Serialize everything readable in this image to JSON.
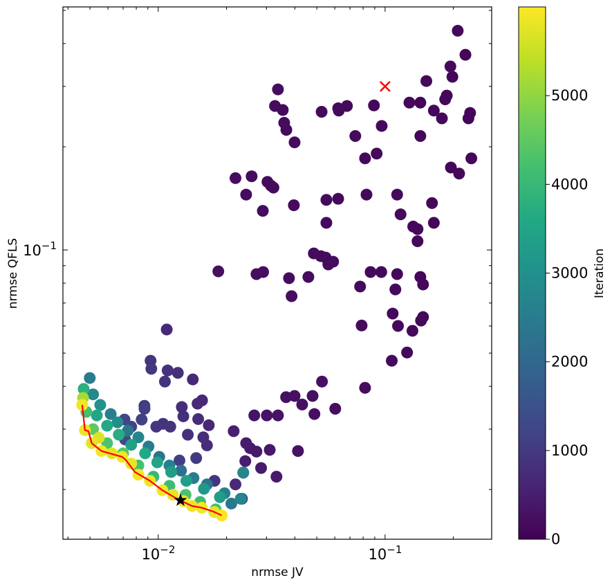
{
  "chart_data": {
    "type": "scatter",
    "xlabel": "nrmse JV",
    "ylabel": "nrmse QFLS",
    "xscale": "log",
    "yscale": "log",
    "xlim": [
      0.0038,
      0.295
    ],
    "ylim": [
      0.01432,
      0.5117
    ],
    "x_tick_labels": [
      {
        "value": 0.01,
        "base": "10",
        "exp": "−2"
      },
      {
        "value": 0.1,
        "base": "10",
        "exp": "−1"
      }
    ],
    "y_tick_labels": [
      {
        "value": 0.1,
        "base": "10",
        "exp": "−1"
      }
    ],
    "grid": false,
    "colorbar": {
      "label": "Iteration",
      "range": [
        0,
        6000
      ],
      "ticks": [
        0,
        1000,
        2000,
        3000,
        4000,
        5000
      ],
      "tick_labels": [
        "0",
        "1000",
        "2000",
        "3000",
        "4000",
        "5000"
      ],
      "colormap": [
        "#440154",
        "#482475",
        "#414487",
        "#355f8d",
        "#2a788e",
        "#21918c",
        "#22a884",
        "#44bf70",
        "#7ad151",
        "#bddf26",
        "#fde725"
      ]
    },
    "points_format": [
      "nrmse_jv",
      "nrmse_qfls",
      "iteration"
    ],
    "points": [
      [
        0.209,
        0.436,
        120
      ],
      [
        0.226,
        0.371,
        90
      ],
      [
        0.194,
        0.343,
        150
      ],
      [
        0.198,
        0.32,
        110
      ],
      [
        0.152,
        0.311,
        130
      ],
      [
        0.0337,
        0.294,
        200
      ],
      [
        0.0327,
        0.263,
        180
      ],
      [
        0.0354,
        0.256,
        160
      ],
      [
        0.0525,
        0.253,
        140
      ],
      [
        0.0621,
        0.259,
        120
      ],
      [
        0.0625,
        0.255,
        150
      ],
      [
        0.0679,
        0.263,
        130
      ],
      [
        0.0893,
        0.264,
        100
      ],
      [
        0.128,
        0.269,
        120
      ],
      [
        0.143,
        0.269,
        90
      ],
      [
        0.164,
        0.255,
        110
      ],
      [
        0.187,
        0.282,
        100
      ],
      [
        0.184,
        0.275,
        130
      ],
      [
        0.178,
        0.242,
        120
      ],
      [
        0.237,
        0.251,
        80
      ],
      [
        0.233,
        0.242,
        100
      ],
      [
        0.0359,
        0.235,
        170
      ],
      [
        0.0367,
        0.224,
        160
      ],
      [
        0.0966,
        0.23,
        140
      ],
      [
        0.143,
        0.215,
        110
      ],
      [
        0.0739,
        0.215,
        150
      ],
      [
        0.0399,
        0.206,
        190
      ],
      [
        0.0918,
        0.191,
        130
      ],
      [
        0.0816,
        0.185,
        140
      ],
      [
        0.195,
        0.174,
        90
      ],
      [
        0.24,
        0.185,
        100
      ],
      [
        0.212,
        0.167,
        110
      ],
      [
        0.0219,
        0.162,
        210
      ],
      [
        0.0258,
        0.164,
        200
      ],
      [
        0.0303,
        0.158,
        180
      ],
      [
        0.0314,
        0.154,
        170
      ],
      [
        0.0322,
        0.152,
        190
      ],
      [
        0.0244,
        0.145,
        200
      ],
      [
        0.113,
        0.145,
        120
      ],
      [
        0.0828,
        0.145,
        130
      ],
      [
        0.0551,
        0.14,
        150
      ],
      [
        0.0621,
        0.141,
        140
      ],
      [
        0.0396,
        0.135,
        170
      ],
      [
        0.0289,
        0.13,
        190
      ],
      [
        0.161,
        0.137,
        110
      ],
      [
        0.117,
        0.127,
        120
      ],
      [
        0.164,
        0.12,
        100
      ],
      [
        0.0551,
        0.12,
        160
      ],
      [
        0.133,
        0.117,
        110
      ],
      [
        0.139,
        0.115,
        130
      ],
      [
        0.139,
        0.106,
        120
      ],
      [
        0.0184,
        0.0866,
        260
      ],
      [
        0.0485,
        0.0977,
        180
      ],
      [
        0.0521,
        0.0959,
        170
      ],
      [
        0.0547,
        0.095,
        160
      ],
      [
        0.059,
        0.0924,
        170
      ],
      [
        0.0562,
        0.0907,
        150
      ],
      [
        0.0271,
        0.085,
        220
      ],
      [
        0.029,
        0.0862,
        210
      ],
      [
        0.0377,
        0.0827,
        190
      ],
      [
        0.0459,
        0.0834,
        180
      ],
      [
        0.0863,
        0.0862,
        140
      ],
      [
        0.0962,
        0.0862,
        130
      ],
      [
        0.113,
        0.085,
        120
      ],
      [
        0.143,
        0.0834,
        110
      ],
      [
        0.147,
        0.0793,
        120
      ],
      [
        0.0776,
        0.0782,
        150
      ],
      [
        0.111,
        0.0767,
        130
      ],
      [
        0.0387,
        0.0733,
        200
      ],
      [
        0.108,
        0.0652,
        140
      ],
      [
        0.147,
        0.0637,
        130
      ],
      [
        0.144,
        0.0622,
        120
      ],
      [
        0.114,
        0.06,
        140
      ],
      [
        0.0788,
        0.0602,
        150
      ],
      [
        0.132,
        0.0581,
        130
      ],
      [
        0.0109,
        0.0586,
        700
      ],
      [
        0.107,
        0.0475,
        150
      ],
      [
        0.125,
        0.0502,
        140
      ],
      [
        0.0527,
        0.0413,
        250
      ],
      [
        0.0816,
        0.0396,
        200
      ],
      [
        0.0399,
        0.0375,
        260
      ],
      [
        0.0366,
        0.0372,
        280
      ],
      [
        0.0431,
        0.0354,
        250
      ],
      [
        0.0479,
        0.0375,
        240
      ],
      [
        0.0603,
        0.0344,
        220
      ],
      [
        0.0488,
        0.0332,
        250
      ],
      [
        0.0337,
        0.0329,
        300
      ],
      [
        0.0301,
        0.0329,
        310
      ],
      [
        0.0265,
        0.0329,
        330
      ],
      [
        0.0413,
        0.0259,
        290
      ],
      [
        0.00925,
        0.0475,
        900
      ],
      [
        0.011,
        0.0445,
        850
      ],
      [
        0.0122,
        0.0438,
        800
      ],
      [
        0.00932,
        0.045,
        950
      ],
      [
        0.0107,
        0.0413,
        880
      ],
      [
        0.0142,
        0.0419,
        700
      ],
      [
        0.0156,
        0.0364,
        650
      ],
      [
        0.0149,
        0.0356,
        700
      ],
      [
        0.0127,
        0.0348,
        780
      ],
      [
        0.00869,
        0.0351,
        1000
      ],
      [
        0.0105,
        0.0311,
        900
      ],
      [
        0.0098,
        0.0305,
        950
      ],
      [
        0.0113,
        0.0305,
        880
      ],
      [
        0.0129,
        0.0327,
        820
      ],
      [
        0.015,
        0.0321,
        760
      ],
      [
        0.0167,
        0.0308,
        700
      ],
      [
        0.0135,
        0.0289,
        850
      ],
      [
        0.0158,
        0.0284,
        780
      ],
      [
        0.0164,
        0.0269,
        760
      ],
      [
        0.0215,
        0.0296,
        500
      ],
      [
        0.0244,
        0.0273,
        450
      ],
      [
        0.0254,
        0.0264,
        430
      ],
      [
        0.0271,
        0.0258,
        420
      ],
      [
        0.031,
        0.0261,
        400
      ],
      [
        0.0284,
        0.0231,
        440
      ],
      [
        0.0332,
        0.0218,
        420
      ],
      [
        0.0242,
        0.0242,
        480
      ],
      [
        0.0237,
        0.0224,
        500
      ],
      [
        0.0177,
        0.0212,
        900
      ],
      [
        0.0219,
        0.0207,
        700
      ],
      [
        0.0147,
        0.0247,
        1000
      ],
      [
        0.0124,
        0.0243,
        1100
      ],
      [
        0.0076,
        0.0305,
        1200
      ],
      [
        0.0071,
        0.032,
        1250
      ],
      [
        0.0087,
        0.0344,
        1100
      ],
      [
        0.00845,
        0.032,
        1150
      ],
      [
        0.00714,
        0.028,
        1300
      ],
      [
        0.0234,
        0.0188,
        1400
      ],
      [
        0.0237,
        0.0224,
        2700
      ],
      [
        0.00499,
        0.0423,
        2500
      ],
      [
        0.00469,
        0.0393,
        3800
      ],
      [
        0.00466,
        0.037,
        5200
      ],
      [
        0.00516,
        0.0379,
        2800
      ],
      [
        0.00555,
        0.0353,
        3000
      ],
      [
        0.00617,
        0.0332,
        2600
      ],
      [
        0.00661,
        0.0314,
        2900
      ],
      [
        0.00734,
        0.0297,
        2400
      ],
      [
        0.00817,
        0.0284,
        2700
      ],
      [
        0.00906,
        0.0267,
        2500
      ],
      [
        0.0101,
        0.0249,
        2300
      ],
      [
        0.0112,
        0.0235,
        2600
      ],
      [
        0.0126,
        0.0227,
        2200
      ],
      [
        0.0143,
        0.0216,
        2500
      ],
      [
        0.0164,
        0.0207,
        2300
      ],
      [
        0.0196,
        0.0195,
        2600
      ],
      [
        0.0231,
        0.0188,
        2700
      ],
      [
        0.021,
        0.0182,
        2400
      ],
      [
        0.00536,
        0.0329,
        3500
      ],
      [
        0.00595,
        0.0307,
        3600
      ],
      [
        0.0067,
        0.0289,
        3700
      ],
      [
        0.0076,
        0.027,
        3400
      ],
      [
        0.00875,
        0.0255,
        3600
      ],
      [
        0.0099,
        0.024,
        3500
      ],
      [
        0.0114,
        0.0225,
        3300
      ],
      [
        0.0133,
        0.0212,
        3400
      ],
      [
        0.0159,
        0.0201,
        3200
      ],
      [
        0.0187,
        0.019,
        3300
      ],
      [
        0.00482,
        0.0337,
        4200
      ],
      [
        0.00516,
        0.03,
        4500
      ],
      [
        0.00595,
        0.0273,
        4300
      ],
      [
        0.007,
        0.0255,
        4400
      ],
      [
        0.00817,
        0.0235,
        4200
      ],
      [
        0.00952,
        0.0218,
        4000
      ],
      [
        0.0112,
        0.0205,
        4100
      ],
      [
        0.0132,
        0.0193,
        4300
      ],
      [
        0.0153,
        0.0184,
        4100
      ],
      [
        0.0179,
        0.0175,
        4200
      ],
      [
        0.00462,
        0.0353,
        5900
      ],
      [
        0.00475,
        0.0298,
        5850
      ],
      [
        0.00509,
        0.0273,
        5800
      ],
      [
        0.00547,
        0.0283,
        5700
      ],
      [
        0.00562,
        0.0259,
        5900
      ],
      [
        0.00625,
        0.0255,
        5750
      ],
      [
        0.00694,
        0.0249,
        5900
      ],
      [
        0.0076,
        0.0238,
        5800
      ],
      [
        0.00817,
        0.0221,
        5900
      ],
      [
        0.00919,
        0.0212,
        5850
      ],
      [
        0.01043,
        0.0199,
        5900
      ],
      [
        0.0116,
        0.0193,
        5800
      ],
      [
        0.0129,
        0.0185,
        5900
      ],
      [
        0.0141,
        0.0179,
        5850
      ],
      [
        0.01556,
        0.0177,
        5900
      ],
      [
        0.01766,
        0.0172,
        5800
      ],
      [
        0.01905,
        0.0168,
        5950
      ]
    ],
    "pareto_front": {
      "color": "#ff0000",
      "points": [
        [
          0.00462,
          0.0353
        ],
        [
          0.00475,
          0.0298
        ],
        [
          0.00492,
          0.0296
        ],
        [
          0.00509,
          0.0273
        ],
        [
          0.00562,
          0.0259
        ],
        [
          0.00694,
          0.0249
        ],
        [
          0.00719,
          0.0244
        ],
        [
          0.00788,
          0.0225
        ],
        [
          0.00919,
          0.0212
        ],
        [
          0.01043,
          0.0199
        ],
        [
          0.01225,
          0.0187
        ],
        [
          0.0141,
          0.0179
        ],
        [
          0.01556,
          0.0177
        ],
        [
          0.01766,
          0.0172
        ],
        [
          0.01905,
          0.0168
        ]
      ]
    },
    "best_point": {
      "marker": "star",
      "color": "#000000",
      "value": [
        0.01253,
        0.0186
      ]
    },
    "reference_point": {
      "marker": "x",
      "color": "#ff0000",
      "value": [
        0.1,
        0.3
      ]
    }
  }
}
